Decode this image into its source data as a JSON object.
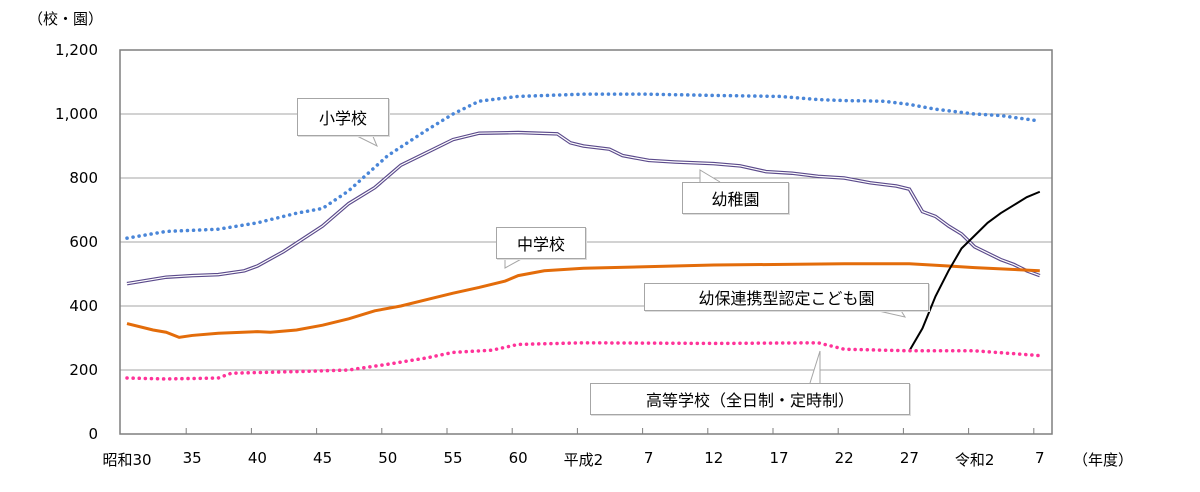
{
  "chart_data": {
    "type": "line",
    "ylabel": "（校・園）",
    "xlabel": "（年度）",
    "ylim": [
      0,
      1200
    ],
    "yticks": [
      "0",
      "200",
      "400",
      "600",
      "800",
      "1,000",
      "1,200"
    ],
    "ytick_values": [
      0,
      200,
      400,
      600,
      800,
      1000,
      1200
    ],
    "xticks": [
      "昭和30",
      "35",
      "40",
      "45",
      "50",
      "55",
      "60",
      "平成2",
      "7",
      "12",
      "17",
      "22",
      "27",
      "令和2",
      "7"
    ],
    "xtick_years": [
      1955,
      1960,
      1965,
      1970,
      1975,
      1980,
      1985,
      1990,
      1995,
      2000,
      2005,
      2010,
      2015,
      2020,
      2025
    ],
    "grid": true,
    "series": [
      {
        "name": "小学校",
        "color": "#4a86d8",
        "style": "dotted",
        "x": [
          1955,
          1958,
          1962,
          1965,
          1968,
          1970,
          1972,
          1975,
          1978,
          1980,
          1982,
          1985,
          1990,
          1995,
          2000,
          2005,
          2008,
          2010,
          2013,
          2015,
          2017,
          2020,
          2022,
          2025
        ],
        "y": [
          612,
          633,
          640,
          660,
          690,
          705,
          760,
          870,
          950,
          1000,
          1040,
          1055,
          1062,
          1062,
          1058,
          1055,
          1045,
          1042,
          1040,
          1030,
          1015,
          1000,
          995,
          978
        ]
      },
      {
        "name": "幼稚園",
        "color": "#5b4a8b",
        "style": "double",
        "x": [
          1955,
          1958,
          1960,
          1962,
          1964,
          1965,
          1967,
          1970,
          1972,
          1974,
          1976,
          1978,
          1980,
          1982,
          1985,
          1988,
          1989,
          1990,
          1992,
          1993,
          1995,
          1997,
          2000,
          2002,
          2004,
          2006,
          2008,
          2010,
          2012,
          2014,
          2015,
          2016,
          2017,
          2018,
          2019,
          2020,
          2021,
          2022,
          2023,
          2024,
          2025
        ],
        "y": [
          470,
          490,
          495,
          498,
          510,
          525,
          570,
          650,
          720,
          770,
          840,
          880,
          920,
          940,
          942,
          938,
          910,
          900,
          890,
          870,
          855,
          850,
          845,
          838,
          820,
          815,
          805,
          800,
          785,
          775,
          765,
          695,
          680,
          650,
          625,
          585,
          565,
          545,
          530,
          510,
          495
        ]
      },
      {
        "name": "中学校",
        "color": "#e36c0a",
        "style": "solid",
        "x": [
          1955,
          1957,
          1958,
          1959,
          1960,
          1962,
          1965,
          1966,
          1968,
          1970,
          1972,
          1974,
          1976,
          1978,
          1980,
          1982,
          1984,
          1985,
          1987,
          1990,
          2000,
          2010,
          2015,
          2018,
          2020,
          2025
        ],
        "y": [
          345,
          325,
          318,
          302,
          308,
          315,
          320,
          318,
          325,
          340,
          360,
          385,
          400,
          420,
          440,
          458,
          478,
          495,
          510,
          518,
          528,
          532,
          532,
          525,
          520,
          510
        ]
      },
      {
        "name": "幼保連携型認定こども園",
        "color": "#000000",
        "style": "solid",
        "x": [
          2015,
          2016,
          2017,
          2018,
          2019,
          2020,
          2021,
          2022,
          2023,
          2024,
          2025
        ],
        "y": [
          260,
          330,
          430,
          510,
          580,
          620,
          660,
          690,
          715,
          740,
          757
        ]
      },
      {
        "name": "高等学校（全日制・定時制）",
        "color": "#ff3399",
        "style": "dotted",
        "x": [
          1955,
          1958,
          1962,
          1963,
          1968,
          1972,
          1975,
          1978,
          1980,
          1983,
          1985,
          1990,
          2000,
          2008,
          2010,
          2015,
          2020,
          2025
        ],
        "y": [
          175,
          172,
          175,
          190,
          195,
          200,
          218,
          238,
          255,
          262,
          280,
          285,
          283,
          285,
          265,
          260,
          260,
          245
        ]
      }
    ]
  },
  "callouts": {
    "elementary": "小学校",
    "kindergarten": "幼稚園",
    "junior_high": "中学校",
    "kodomoen": "幼保連携型認定こども園",
    "high_school": "高等学校（全日制・定時制）"
  }
}
